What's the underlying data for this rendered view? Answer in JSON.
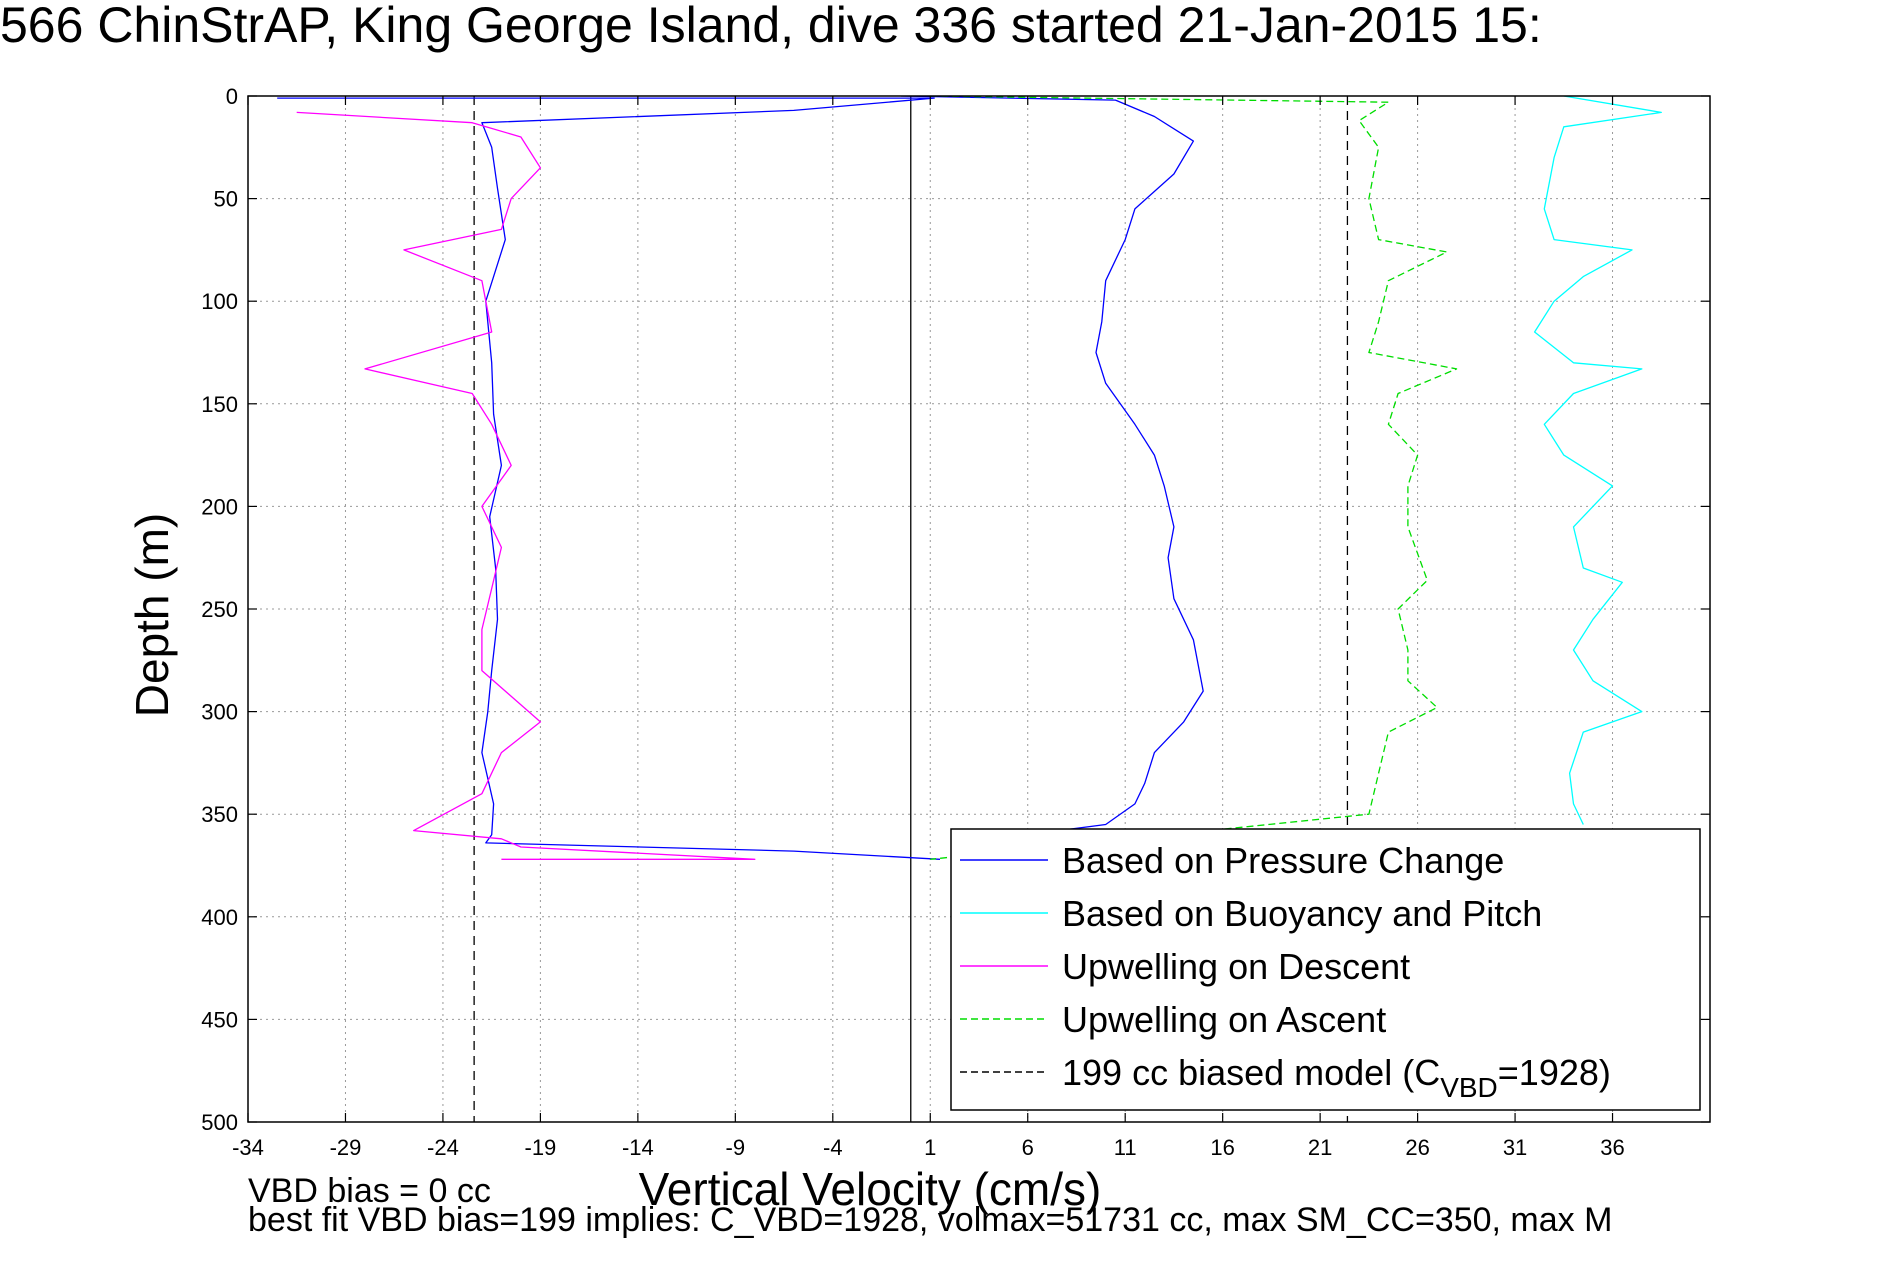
{
  "title": "566 ChinStrAP, King George Island, dive 336 started 21-Jan-2015 15:",
  "footer": {
    "line1": "VBD bias = 0 cc",
    "line2": "best fit VBD bias=199 implies: C_VBD=1928, volmax=51731 cc, max SM_CC=350, max M"
  },
  "chart_data": {
    "type": "line",
    "title": "566 ChinStrAP, King George Island, dive 336 started 21-Jan-2015 15:",
    "xlabel": "Vertical Velocity (cm/s)",
    "ylabel": "Depth (m)",
    "xlim": [
      -34,
      41
    ],
    "ylim": [
      0,
      500
    ],
    "y_reversed": true,
    "xticks": [
      -34,
      -29,
      -24,
      -19,
      -14,
      -9,
      -4,
      1,
      6,
      11,
      16,
      21,
      26,
      31,
      36
    ],
    "yticks": [
      0,
      50,
      100,
      150,
      200,
      250,
      300,
      350,
      400,
      450,
      500
    ],
    "grid": true,
    "legend_position": "bottom-right",
    "reference_lines": [
      {
        "x": -22.4,
        "style": "dashed",
        "color": "#000000"
      },
      {
        "x": 0.0,
        "style": "solid",
        "color": "#000000"
      },
      {
        "x": 22.4,
        "style": "dashed",
        "color": "#000000"
      }
    ],
    "series": [
      {
        "name": "Based on Pressure Change",
        "color": "#0000ff",
        "dash": "solid",
        "x": [
          -32.5,
          1.2,
          -6,
          -22,
          -21.5,
          -21.2,
          -20.8,
          -21.8,
          -21.5,
          -21.4,
          -21.0,
          -21.6,
          -21.3,
          -21.2,
          -21.5,
          -21.7,
          -22.0,
          -21.4,
          -21.5,
          -21.8,
          -6,
          1.5
        ],
        "y": [
          1,
          1,
          7,
          13,
          25,
          45,
          70,
          100,
          130,
          155,
          180,
          205,
          230,
          255,
          280,
          300,
          320,
          345,
          360,
          364,
          368,
          372
        ]
      },
      {
        "name": "Based on Pressure Change",
        "color": "#0000ff",
        "dash": "solid",
        "x": [
          -0.5,
          10.5,
          12.5,
          14.5,
          13.5,
          11.5,
          11.0,
          10.0,
          9.8,
          9.5,
          10.0,
          11.5,
          12.5,
          13.0,
          13.5,
          13.2,
          13.5,
          14.5,
          15.0,
          14.0,
          12.5,
          12.0,
          11.5,
          10.0,
          6.0
        ],
        "y": [
          0,
          2,
          10,
          22,
          38,
          55,
          70,
          90,
          110,
          125,
          140,
          160,
          175,
          190,
          210,
          225,
          245,
          265,
          290,
          305,
          320,
          335,
          345,
          355,
          360
        ]
      },
      {
        "name": "Based on Buoyancy and Pitch",
        "color": "#00ffff",
        "dash": "solid",
        "x": [
          33.5,
          38.5,
          33.5,
          33.0,
          32.5,
          33.0,
          37.0,
          34.5,
          33.0,
          32.0,
          34.0,
          37.5,
          34.0,
          32.5,
          33.5,
          36.0,
          34.0,
          34.5,
          36.5,
          35.0,
          34.0,
          35.0,
          37.5,
          34.5,
          33.8,
          34.0,
          34.5
        ],
        "y": [
          0,
          8,
          15,
          30,
          55,
          70,
          75,
          88,
          100,
          115,
          130,
          133,
          145,
          160,
          175,
          190,
          210,
          230,
          237,
          255,
          270,
          285,
          300,
          310,
          330,
          345,
          355
        ]
      },
      {
        "name": "Upwelling on Descent",
        "color": "#ff00ff",
        "dash": "solid",
        "x": [
          -31.5,
          -22.5,
          -20.0,
          -19.0,
          -20.5,
          -21.0,
          -26.0,
          -22.0,
          -21.5,
          -28.0,
          -22.5,
          -21.5,
          -20.5,
          -22.0,
          -21.0,
          -21.5,
          -22.0,
          -22.0,
          -19.0,
          -21.0,
          -22.0,
          -25.5,
          -21.0,
          -20.0,
          -8.0,
          -21.0
        ],
        "y": [
          8,
          13,
          20,
          35,
          50,
          65,
          75,
          90,
          115,
          133,
          145,
          160,
          180,
          200,
          220,
          240,
          260,
          280,
          305,
          320,
          340,
          358,
          362,
          366,
          372,
          372
        ]
      },
      {
        "name": "Upwelling on Ascent",
        "color": "#00dd00",
        "dash": "dashed",
        "x": [
          1.0,
          24.5,
          23.0,
          24.0,
          23.5,
          24.0,
          27.5,
          24.5,
          24.0,
          23.5,
          28.0,
          25.0,
          24.5,
          26.0,
          25.5,
          25.5,
          26.5,
          25.0,
          25.5,
          25.5,
          27.0,
          24.5,
          24.0,
          23.5,
          1.0
        ],
        "y": [
          0,
          3,
          12,
          25,
          50,
          70,
          76,
          90,
          110,
          125,
          133,
          145,
          160,
          175,
          190,
          210,
          236,
          250,
          270,
          285,
          298,
          310,
          330,
          350,
          372
        ]
      },
      {
        "name": "199 cc biased model (C",
        "subscript": "VBD",
        "suffix": "=1928)",
        "color": "#000000",
        "dash": "dashed",
        "x": [],
        "y": []
      }
    ]
  }
}
